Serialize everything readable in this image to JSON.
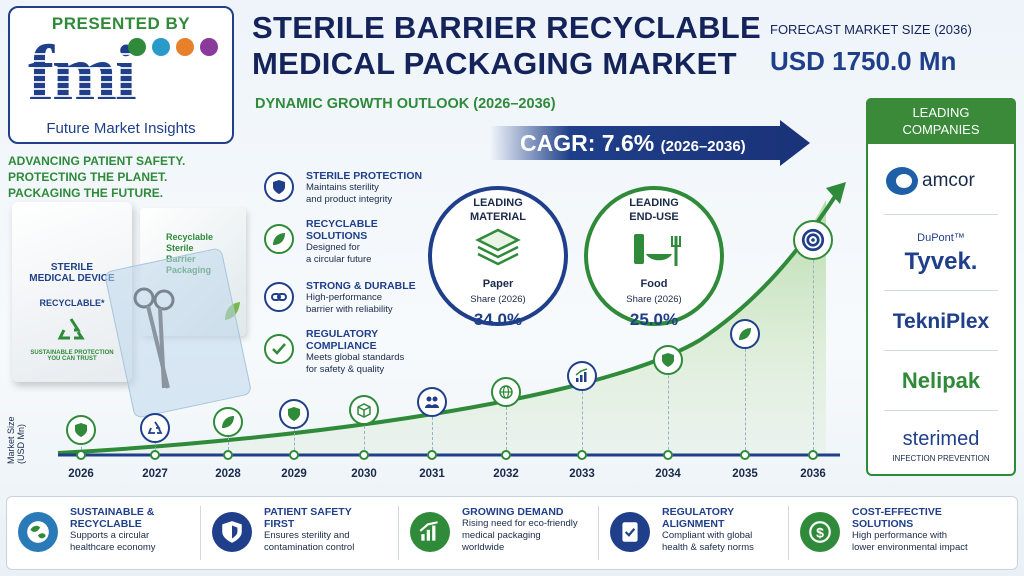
{
  "logo": {
    "presented_by": "PRESENTED BY",
    "letters": "fmi",
    "name": "Future Market Insights"
  },
  "title": {
    "line1": "STERILE BARRIER RECYCLABLE",
    "line2": "MEDICAL PACKAGING MARKET",
    "subtitle": "DYNAMIC GROWTH OUTLOOK (2026–2036)"
  },
  "forecast": {
    "label": "FORECAST MARKET SIZE (2036)",
    "value": "USD 1750.0 Mn"
  },
  "cagr": {
    "main": "CAGR: 7.6%",
    "period": "(2026–2036)"
  },
  "tagline": [
    "ADVANCING PATIENT SAFETY.",
    "PROTECTING THE PLANET.",
    "PACKAGING THE FUTURE."
  ],
  "product": {
    "pouch_line1": "STERILE",
    "pouch_line2": "MEDICAL DEVICE",
    "pouch_recyclable": "RECYCLABLE*",
    "pouch_small1": "SUSTAINABLE PROTECTION",
    "pouch_small2": "YOU CAN TRUST",
    "box_line1": "Recyclable",
    "box_line2": "Sterile",
    "box_line3": "Barrier",
    "box_line4": "Packaging"
  },
  "features": [
    {
      "title1": "STERILE PROTECTION",
      "title2": "",
      "desc1": "Maintains sterility",
      "desc2": "and product integrity",
      "icon": "shield-icon"
    },
    {
      "title1": "RECYCLABLE",
      "title2": "SOLUTIONS",
      "desc1": "Designed for",
      "desc2": "a circular future",
      "icon": "leaf-icon"
    },
    {
      "title1": "STRONG & DURABLE",
      "title2": "",
      "desc1": "High-performance",
      "desc2": "barrier with reliability",
      "icon": "link-icon"
    },
    {
      "title1": "REGULATORY",
      "title2": "COMPLIANCE",
      "desc1": "Meets global standards",
      "desc2": "for safety & quality",
      "icon": "check-icon"
    }
  ],
  "leading_material": {
    "label1": "LEADING",
    "label2": "MATERIAL",
    "name": "Paper",
    "share_label": "Share (2026)",
    "value": "34.0%",
    "color": "#1f3f8a"
  },
  "leading_enduse": {
    "label1": "LEADING",
    "label2": "END-USE",
    "name": "Food",
    "share_label": "Share (2026)",
    "value": "25.0%",
    "color": "#2f8a3a"
  },
  "companies": {
    "head1": "LEADING",
    "head2": "COMPANIES",
    "amcor": "amcor",
    "dupont": "DuPont™",
    "tyvek": "Tyvek.",
    "tekniplex": "TekniPlex",
    "nelipak": "Nelipak",
    "sterimed": "sterimed",
    "sterimed_sub": "INFECTION PREVENTION"
  },
  "timeline": {
    "axis_label1": "Market Size",
    "axis_label2": "(USD Mn)",
    "years": [
      "2026",
      "2027",
      "2028",
      "2029",
      "2030",
      "2031",
      "2032",
      "2033",
      "2034",
      "2035",
      "2036"
    ],
    "icons": [
      "shield-icon",
      "recycle-icon",
      "leaf-icon",
      "shield-icon",
      "box-icon",
      "people-icon",
      "globe-icon",
      "growth-chart-icon",
      "shield-icon",
      "leaf-icon",
      "target-icon"
    ]
  },
  "bottom": [
    {
      "title1": "SUSTAINABLE &",
      "title2": "RECYCLABLE",
      "desc1": "Supports a circular",
      "desc2": "healthcare economy",
      "icon": "globe-leaf-icon",
      "color": "#2a7ab8"
    },
    {
      "title1": "PATIENT SAFETY",
      "title2": "FIRST",
      "desc1": "Ensures sterility and",
      "desc2": "contamination control",
      "icon": "shield-icon",
      "color": "#1f3f8a"
    },
    {
      "title1": "GROWING DEMAND",
      "title2": "",
      "desc1": "Rising need for eco-friendly",
      "desc2": "medical packaging",
      "desc3": "worldwide",
      "icon": "growth-chart-icon",
      "color": "#2f8a3a"
    },
    {
      "title1": "REGULATORY",
      "title2": "ALIGNMENT",
      "desc1": "Compliant with global",
      "desc2": "health & safety norms",
      "icon": "document-check-icon",
      "color": "#1f3f8a"
    },
    {
      "title1": "COST-EFFECTIVE",
      "title2": "SOLUTIONS",
      "desc1": "High performance with",
      "desc2": "lower environmental impact",
      "icon": "dollar-cycle-icon",
      "color": "#2f8a3a"
    }
  ]
}
